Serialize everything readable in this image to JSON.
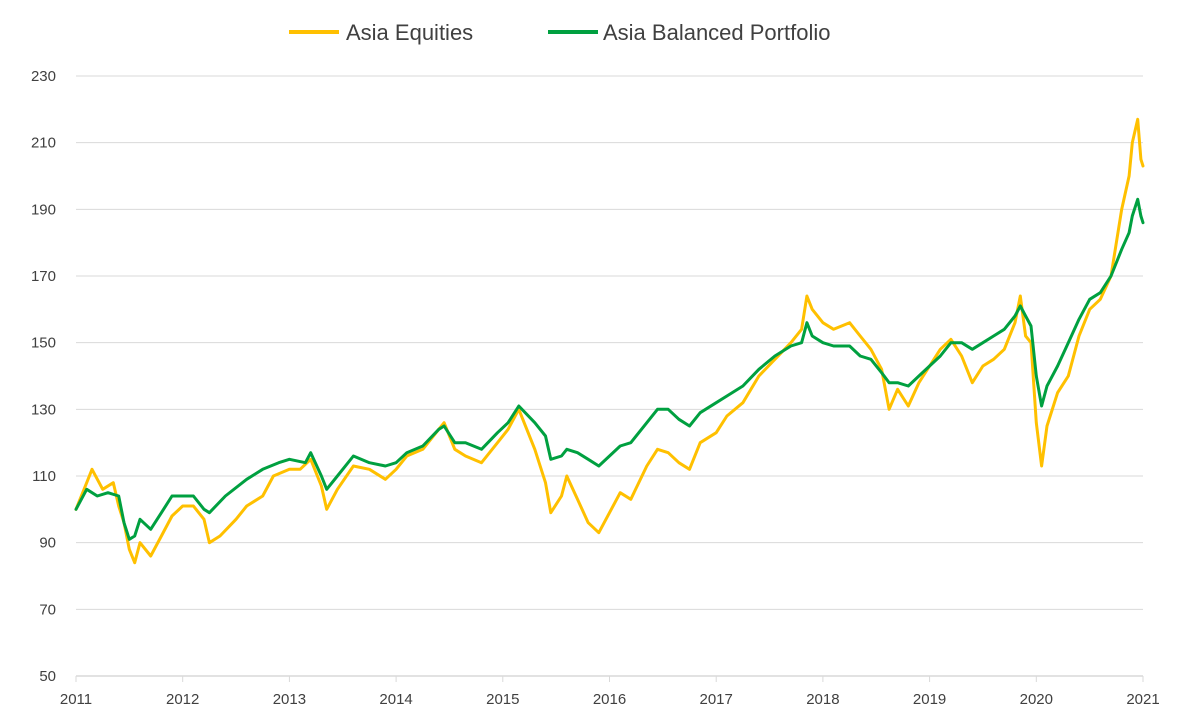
{
  "colors": {
    "asia_equities": "#FFC000",
    "asia_balanced": "#00A040",
    "grid": "#D9D9D9",
    "text": "#404040"
  },
  "legend": {
    "series1": "Asia Equities",
    "series2": "Asia Balanced Portfolio"
  },
  "chart_data": {
    "type": "line",
    "title": "",
    "xlabel": "",
    "ylabel": "",
    "legend_position": "top",
    "grid": "horizontal",
    "xlim": [
      2011,
      2021
    ],
    "ylim": [
      50,
      230
    ],
    "x_ticks": [
      "2011",
      "2012",
      "2013",
      "2014",
      "2015",
      "2016",
      "2017",
      "2018",
      "2019",
      "2020",
      "2021"
    ],
    "y_ticks": [
      "50",
      "70",
      "90",
      "110",
      "130",
      "150",
      "170",
      "190",
      "210",
      "230"
    ],
    "series": [
      {
        "name": "Asia Equities",
        "color": "#FFC000",
        "points": [
          [
            2011.0,
            100
          ],
          [
            2011.1,
            108
          ],
          [
            2011.15,
            112
          ],
          [
            2011.25,
            106
          ],
          [
            2011.35,
            108
          ],
          [
            2011.4,
            101
          ],
          [
            2011.45,
            96
          ],
          [
            2011.5,
            88
          ],
          [
            2011.55,
            84
          ],
          [
            2011.6,
            90
          ],
          [
            2011.7,
            86
          ],
          [
            2011.8,
            92
          ],
          [
            2011.9,
            98
          ],
          [
            2012.0,
            101
          ],
          [
            2012.1,
            101
          ],
          [
            2012.2,
            97
          ],
          [
            2012.25,
            90
          ],
          [
            2012.35,
            92
          ],
          [
            2012.5,
            97
          ],
          [
            2012.6,
            101
          ],
          [
            2012.75,
            104
          ],
          [
            2012.85,
            110
          ],
          [
            2013.0,
            112
          ],
          [
            2013.1,
            112
          ],
          [
            2013.2,
            115
          ],
          [
            2013.3,
            107
          ],
          [
            2013.35,
            100
          ],
          [
            2013.45,
            106
          ],
          [
            2013.6,
            113
          ],
          [
            2013.75,
            112
          ],
          [
            2013.9,
            109
          ],
          [
            2014.0,
            112
          ],
          [
            2014.1,
            116
          ],
          [
            2014.25,
            118
          ],
          [
            2014.4,
            124
          ],
          [
            2014.45,
            126
          ],
          [
            2014.55,
            118
          ],
          [
            2014.65,
            116
          ],
          [
            2014.8,
            114
          ],
          [
            2014.95,
            120
          ],
          [
            2015.05,
            124
          ],
          [
            2015.15,
            130
          ],
          [
            2015.3,
            118
          ],
          [
            2015.4,
            108
          ],
          [
            2015.45,
            99
          ],
          [
            2015.55,
            104
          ],
          [
            2015.6,
            110
          ],
          [
            2015.7,
            103
          ],
          [
            2015.8,
            96
          ],
          [
            2015.9,
            93
          ],
          [
            2016.0,
            99
          ],
          [
            2016.1,
            105
          ],
          [
            2016.2,
            103
          ],
          [
            2016.35,
            113
          ],
          [
            2016.45,
            118
          ],
          [
            2016.55,
            117
          ],
          [
            2016.65,
            114
          ],
          [
            2016.75,
            112
          ],
          [
            2016.85,
            120
          ],
          [
            2017.0,
            123
          ],
          [
            2017.1,
            128
          ],
          [
            2017.25,
            132
          ],
          [
            2017.4,
            140
          ],
          [
            2017.55,
            145
          ],
          [
            2017.7,
            150
          ],
          [
            2017.8,
            154
          ],
          [
            2017.85,
            164
          ],
          [
            2017.9,
            160
          ],
          [
            2018.0,
            156
          ],
          [
            2018.1,
            154
          ],
          [
            2018.25,
            156
          ],
          [
            2018.35,
            152
          ],
          [
            2018.45,
            148
          ],
          [
            2018.55,
            142
          ],
          [
            2018.62,
            130
          ],
          [
            2018.7,
            136
          ],
          [
            2018.8,
            131
          ],
          [
            2018.9,
            138
          ],
          [
            2019.0,
            143
          ],
          [
            2019.1,
            148
          ],
          [
            2019.2,
            151
          ],
          [
            2019.3,
            146
          ],
          [
            2019.4,
            138
          ],
          [
            2019.5,
            143
          ],
          [
            2019.6,
            145
          ],
          [
            2019.7,
            148
          ],
          [
            2019.8,
            156
          ],
          [
            2019.85,
            164
          ],
          [
            2019.9,
            152
          ],
          [
            2019.95,
            150
          ],
          [
            2020.0,
            126
          ],
          [
            2020.05,
            113
          ],
          [
            2020.1,
            125
          ],
          [
            2020.2,
            135
          ],
          [
            2020.3,
            140
          ],
          [
            2020.4,
            152
          ],
          [
            2020.5,
            160
          ],
          [
            2020.6,
            163
          ],
          [
            2020.7,
            170
          ],
          [
            2020.8,
            190
          ],
          [
            2020.87,
            200
          ],
          [
            2020.9,
            210
          ],
          [
            2020.95,
            217
          ],
          [
            2020.98,
            205
          ],
          [
            2021.0,
            203
          ]
        ]
      },
      {
        "name": "Asia Balanced Portfolio",
        "color": "#00A040",
        "points": [
          [
            2011.0,
            100
          ],
          [
            2011.1,
            106
          ],
          [
            2011.2,
            104
          ],
          [
            2011.3,
            105
          ],
          [
            2011.4,
            104
          ],
          [
            2011.45,
            96
          ],
          [
            2011.5,
            91
          ],
          [
            2011.55,
            92
          ],
          [
            2011.6,
            97
          ],
          [
            2011.7,
            94
          ],
          [
            2011.8,
            99
          ],
          [
            2011.9,
            104
          ],
          [
            2012.0,
            104
          ],
          [
            2012.1,
            104
          ],
          [
            2012.2,
            100
          ],
          [
            2012.25,
            99
          ],
          [
            2012.4,
            104
          ],
          [
            2012.6,
            109
          ],
          [
            2012.75,
            112
          ],
          [
            2012.9,
            114
          ],
          [
            2013.0,
            115
          ],
          [
            2013.15,
            114
          ],
          [
            2013.2,
            117
          ],
          [
            2013.3,
            110
          ],
          [
            2013.35,
            106
          ],
          [
            2013.45,
            110
          ],
          [
            2013.6,
            116
          ],
          [
            2013.75,
            114
          ],
          [
            2013.9,
            113
          ],
          [
            2014.0,
            114
          ],
          [
            2014.1,
            117
          ],
          [
            2014.25,
            119
          ],
          [
            2014.4,
            124
          ],
          [
            2014.45,
            125
          ],
          [
            2014.55,
            120
          ],
          [
            2014.65,
            120
          ],
          [
            2014.8,
            118
          ],
          [
            2014.95,
            123
          ],
          [
            2015.05,
            126
          ],
          [
            2015.15,
            131
          ],
          [
            2015.3,
            126
          ],
          [
            2015.4,
            122
          ],
          [
            2015.45,
            115
          ],
          [
            2015.55,
            116
          ],
          [
            2015.6,
            118
          ],
          [
            2015.7,
            117
          ],
          [
            2015.8,
            115
          ],
          [
            2015.9,
            113
          ],
          [
            2016.0,
            116
          ],
          [
            2016.1,
            119
          ],
          [
            2016.2,
            120
          ],
          [
            2016.35,
            126
          ],
          [
            2016.45,
            130
          ],
          [
            2016.55,
            130
          ],
          [
            2016.65,
            127
          ],
          [
            2016.75,
            125
          ],
          [
            2016.85,
            129
          ],
          [
            2017.0,
            132
          ],
          [
            2017.1,
            134
          ],
          [
            2017.25,
            137
          ],
          [
            2017.4,
            142
          ],
          [
            2017.55,
            146
          ],
          [
            2017.7,
            149
          ],
          [
            2017.8,
            150
          ],
          [
            2017.85,
            156
          ],
          [
            2017.9,
            152
          ],
          [
            2018.0,
            150
          ],
          [
            2018.1,
            149
          ],
          [
            2018.25,
            149
          ],
          [
            2018.35,
            146
          ],
          [
            2018.45,
            145
          ],
          [
            2018.55,
            141
          ],
          [
            2018.62,
            138
          ],
          [
            2018.7,
            138
          ],
          [
            2018.8,
            137
          ],
          [
            2018.9,
            140
          ],
          [
            2019.0,
            143
          ],
          [
            2019.1,
            146
          ],
          [
            2019.2,
            150
          ],
          [
            2019.3,
            150
          ],
          [
            2019.4,
            148
          ],
          [
            2019.5,
            150
          ],
          [
            2019.6,
            152
          ],
          [
            2019.7,
            154
          ],
          [
            2019.8,
            158
          ],
          [
            2019.85,
            161
          ],
          [
            2019.9,
            158
          ],
          [
            2019.95,
            155
          ],
          [
            2020.0,
            140
          ],
          [
            2020.05,
            131
          ],
          [
            2020.1,
            137
          ],
          [
            2020.2,
            143
          ],
          [
            2020.3,
            150
          ],
          [
            2020.4,
            157
          ],
          [
            2020.5,
            163
          ],
          [
            2020.6,
            165
          ],
          [
            2020.7,
            170
          ],
          [
            2020.8,
            178
          ],
          [
            2020.87,
            183
          ],
          [
            2020.9,
            188
          ],
          [
            2020.95,
            193
          ],
          [
            2020.98,
            188
          ],
          [
            2021.0,
            186
          ]
        ]
      }
    ]
  }
}
